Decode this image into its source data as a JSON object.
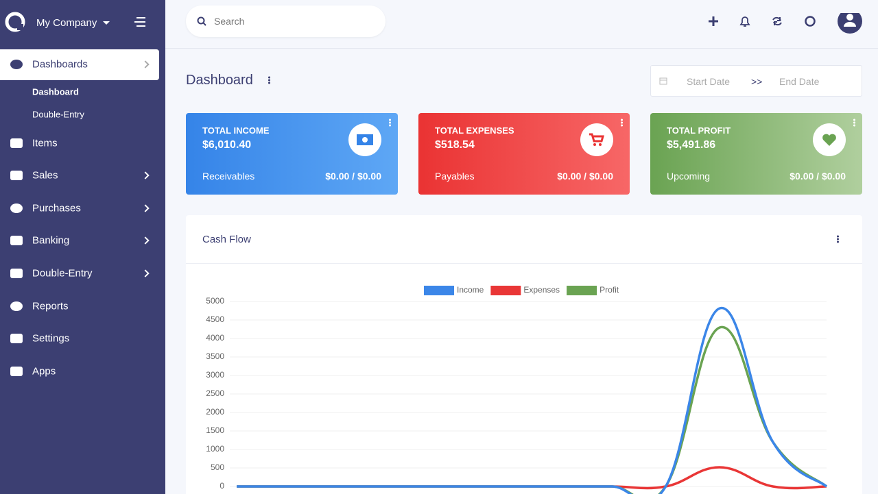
{
  "sidebar": {
    "company": "My Company",
    "menu": [
      "Dashboards",
      "Items",
      "Sales",
      "Purchases",
      "Banking",
      "Double-Entry",
      "Reports",
      "Settings",
      "Apps"
    ],
    "submenu": [
      "Dashboard",
      "Double-Entry"
    ]
  },
  "topbar": {
    "search": "Search"
  },
  "header": {
    "title": "Dashboard",
    "start_date": "Start Date",
    "separator": ">>",
    "end_date": "End Date"
  },
  "cards": [
    {
      "title": "TOTAL INCOME",
      "amount": "$6,010.40",
      "label": "Receivables",
      "sub": "$0.00 / $0.00"
    },
    {
      "title": "TOTAL EXPENSES",
      "amount": "$518.54",
      "label": "Payables",
      "sub": "$0.00 / $0.00"
    },
    {
      "title": "TOTAL PROFIT",
      "amount": "$5,491.86",
      "label": "Upcoming",
      "sub": "$0.00 / $0.00"
    }
  ],
  "cash_flow": {
    "title": "Cash Flow"
  },
  "chart_data": {
    "type": "line",
    "categories": [
      null,
      null,
      null,
      null,
      null,
      null,
      null,
      null,
      null,
      null,
      null,
      null
    ],
    "series": [
      {
        "name": "Income",
        "color": "#3b86e8",
        "values": [
          0,
          0,
          0,
          0,
          0,
          0,
          0,
          0,
          0,
          4810.4,
          1200,
          0
        ]
      },
      {
        "name": "Expenses",
        "color": "#e93636",
        "values": [
          0,
          0,
          0,
          0,
          0,
          0,
          0,
          0,
          0,
          518.54,
          0,
          0
        ]
      },
      {
        "name": "Profit",
        "color": "#6aa352",
        "values": [
          0,
          0,
          0,
          0,
          0,
          0,
          0,
          0,
          0,
          4291.86,
          1200,
          0
        ]
      }
    ],
    "ylim": [
      0,
      5000
    ],
    "yticks": [
      0,
      500,
      1000,
      1500,
      2000,
      2500,
      3000,
      3500,
      4000,
      4500,
      5000
    ],
    "grid": true
  }
}
